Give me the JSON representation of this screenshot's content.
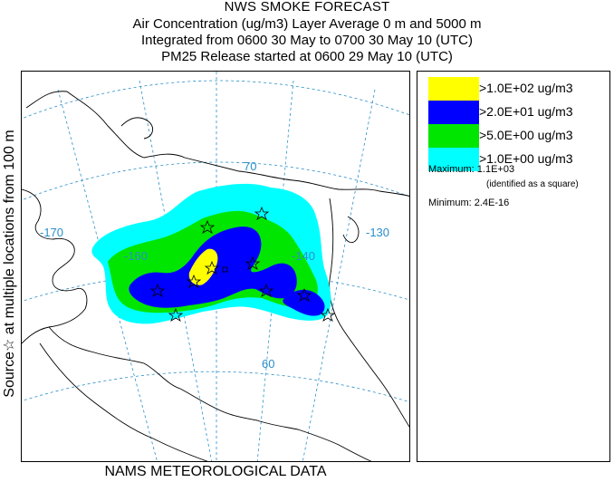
{
  "header": {
    "title": "NWS SMOKE FORECAST",
    "line1": "Air Concentration (ug/m3) Layer Average    0 m and  5000 m",
    "line2": "Integrated from 0600 30 May to 0700 30 May 10 (UTC)",
    "line3": "PM25 Release started at 0600 29 May 10 (UTC)"
  },
  "side_label": "Source☆ at multiple locations   from   100 m",
  "map": {
    "lon_labels": [
      "-170",
      "-160",
      "-140",
      "-130"
    ],
    "lat_labels": [
      "70",
      "60"
    ],
    "colors": {
      "land_outline": "#000000",
      "graticule": "#2a8fc9",
      "level_1": "#00ffff",
      "level_2": "#00e600",
      "level_3": "#0000ff",
      "level_4": "#ffff00"
    },
    "source_marker": "star-icon"
  },
  "legend": {
    "items": [
      {
        "label": ">1.0E+02 ug/m3",
        "color": "#ffff00"
      },
      {
        "label": ">2.0E+01 ug/m3",
        "color": "#0000ff"
      },
      {
        "label": ">5.0E+00 ug/m3",
        "color": "#00e600"
      },
      {
        "label": ">1.0E+00 ug/m3",
        "color": "#00ffff"
      }
    ],
    "maximum": "Maximum: 1.1E+03",
    "maximum_note": "(identified as a square)",
    "minimum": "Minimum: 2.4E-16"
  },
  "footer": "NAMS METEOROLOGICAL DATA"
}
